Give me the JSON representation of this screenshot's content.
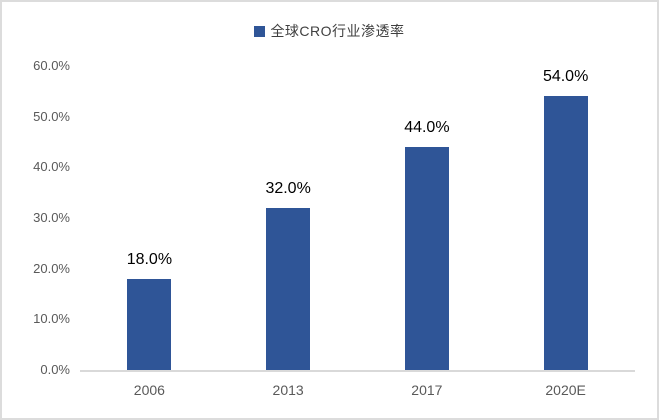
{
  "chart_data": {
    "type": "bar",
    "title": "",
    "legend": "全球CRO行业渗透率",
    "legend_position": "top-center",
    "categories": [
      "2006",
      "2013",
      "2017",
      "2020E"
    ],
    "series": [
      {
        "name": "全球CRO行业渗透率",
        "values": [
          18.0,
          32.0,
          44.0,
          54.0
        ]
      }
    ],
    "data_labels": [
      "18.0%",
      "32.0%",
      "44.0%",
      "54.0%"
    ],
    "y_ticks": [
      "0.0%",
      "10.0%",
      "20.0%",
      "30.0%",
      "40.0%",
      "50.0%",
      "60.0%"
    ],
    "ylim": [
      0,
      60
    ],
    "y_tick_step": 10,
    "grid": false,
    "colors": {
      "bar": "#2F5597",
      "axis_line": "#D9D9D9",
      "tick_text": "#595959",
      "data_label": "#000000",
      "legend_text": "#404040",
      "border": "#DCDCDC"
    }
  }
}
